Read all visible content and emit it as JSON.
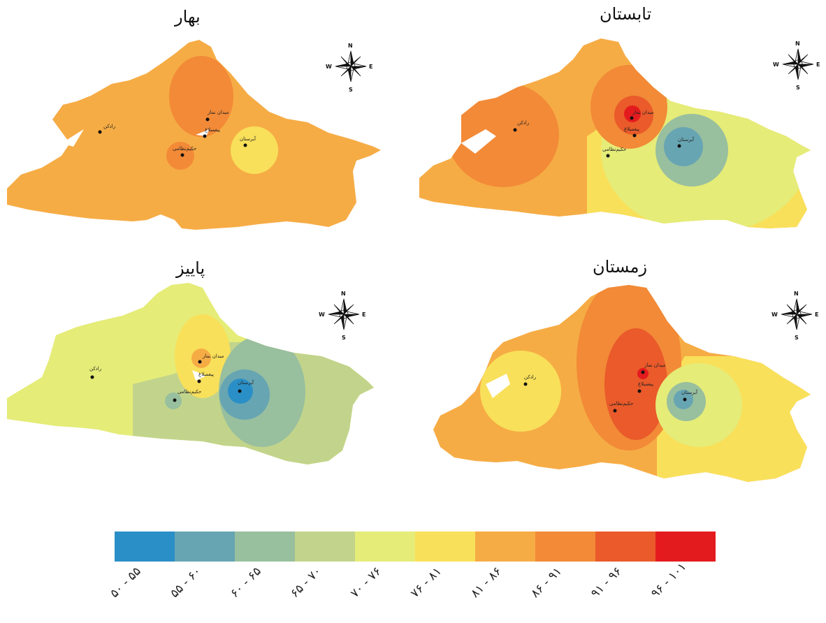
{
  "panels": [
    {
      "id": "spring",
      "title": "بهار"
    },
    {
      "id": "summer",
      "title": "تابستان"
    },
    {
      "id": "autumn",
      "title": "پاییز"
    },
    {
      "id": "winter",
      "title": "زمستان"
    }
  ],
  "places": {
    "radkan": "رادکن",
    "meydan_ab": "میدان نماز",
    "ab_khaleh": "پیغمبلاغ",
    "hakim": "حکیم‌نظامی",
    "torestan": "آبرستان"
  },
  "compass": {
    "n": "N",
    "s": "S",
    "e": "E",
    "w": "W"
  },
  "legend": {
    "classes": [
      {
        "label": "۵۰ - ۵۵",
        "color": "#2b8fc7"
      },
      {
        "label": "۵۵ - ۶۰",
        "color": "#67a5b3"
      },
      {
        "label": "۶۰ - ۶۵",
        "color": "#98bf9e"
      },
      {
        "label": "۶۵ - ۷۰",
        "color": "#c2d48b"
      },
      {
        "label": "۷۰ - ۷۶",
        "color": "#e5ec78"
      },
      {
        "label": "۷۶ - ۸۱",
        "color": "#f9e05a"
      },
      {
        "label": "۸۱ - ۸۶",
        "color": "#f6ac45"
      },
      {
        "label": "۸۶ - ۹۱",
        "color": "#f28a37"
      },
      {
        "label": "۹۱ - ۹۶",
        "color": "#ea5a2a"
      },
      {
        "label": "۹۶ - ۱۰۱",
        "color": "#e41b1e"
      }
    ]
  }
}
